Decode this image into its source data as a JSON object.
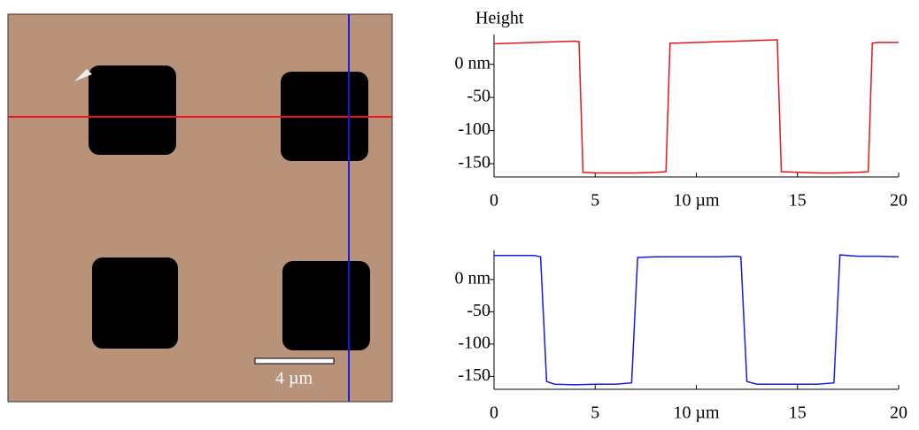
{
  "image": {
    "scale_bar_label": "4 µm"
  },
  "chart_data": [
    {
      "type": "line",
      "title": "Height",
      "x": [
        0,
        1,
        2,
        3,
        4,
        4.2,
        4.4,
        5,
        6,
        7,
        8,
        8.5,
        8.7,
        9,
        10,
        11,
        12,
        13,
        14,
        14.2,
        15,
        16,
        17,
        18,
        18.5,
        18.7,
        19,
        20
      ],
      "series": [
        {
          "color": "#e8141c",
          "values": [
            31,
            32,
            33,
            34,
            35,
            34,
            -163,
            -164,
            -164,
            -164,
            -163,
            -162,
            32,
            32,
            33,
            34,
            35,
            36,
            37,
            -162,
            -163,
            -164,
            -164,
            -163,
            -162,
            32,
            33,
            33
          ]
        }
      ],
      "xlim": [
        0,
        20
      ],
      "xticks": [
        0,
        5,
        {
          "value": 10,
          "label": "10 µm"
        },
        15,
        20
      ],
      "ylim": [
        -170,
        45
      ],
      "yticks": [
        {
          "value": 0,
          "label": "0 nm"
        },
        -50,
        -100,
        -150
      ]
    },
    {
      "type": "line",
      "x": [
        0,
        1,
        2,
        2.3,
        2.6,
        3,
        4,
        5,
        6,
        6.8,
        7.1,
        8,
        9,
        10,
        11,
        12,
        12.2,
        12.5,
        13,
        14,
        15,
        16,
        16.8,
        17.1,
        18,
        19,
        20
      ],
      "series": [
        {
          "color": "#1a1adc",
          "values": [
            37,
            37,
            37,
            35,
            -158,
            -162,
            -163,
            -162,
            -162,
            -160,
            34,
            35,
            35,
            35,
            35,
            36,
            35,
            -158,
            -162,
            -162,
            -162,
            -162,
            -160,
            38,
            36,
            36,
            35
          ]
        }
      ],
      "xlim": [
        0,
        20
      ],
      "xticks": [
        0,
        5,
        {
          "value": 10,
          "label": "10 µm"
        },
        15,
        20
      ],
      "ylim": [
        -170,
        45
      ],
      "yticks": [
        {
          "value": 0,
          "label": "0 nm"
        },
        -50,
        -100,
        -150
      ]
    }
  ]
}
